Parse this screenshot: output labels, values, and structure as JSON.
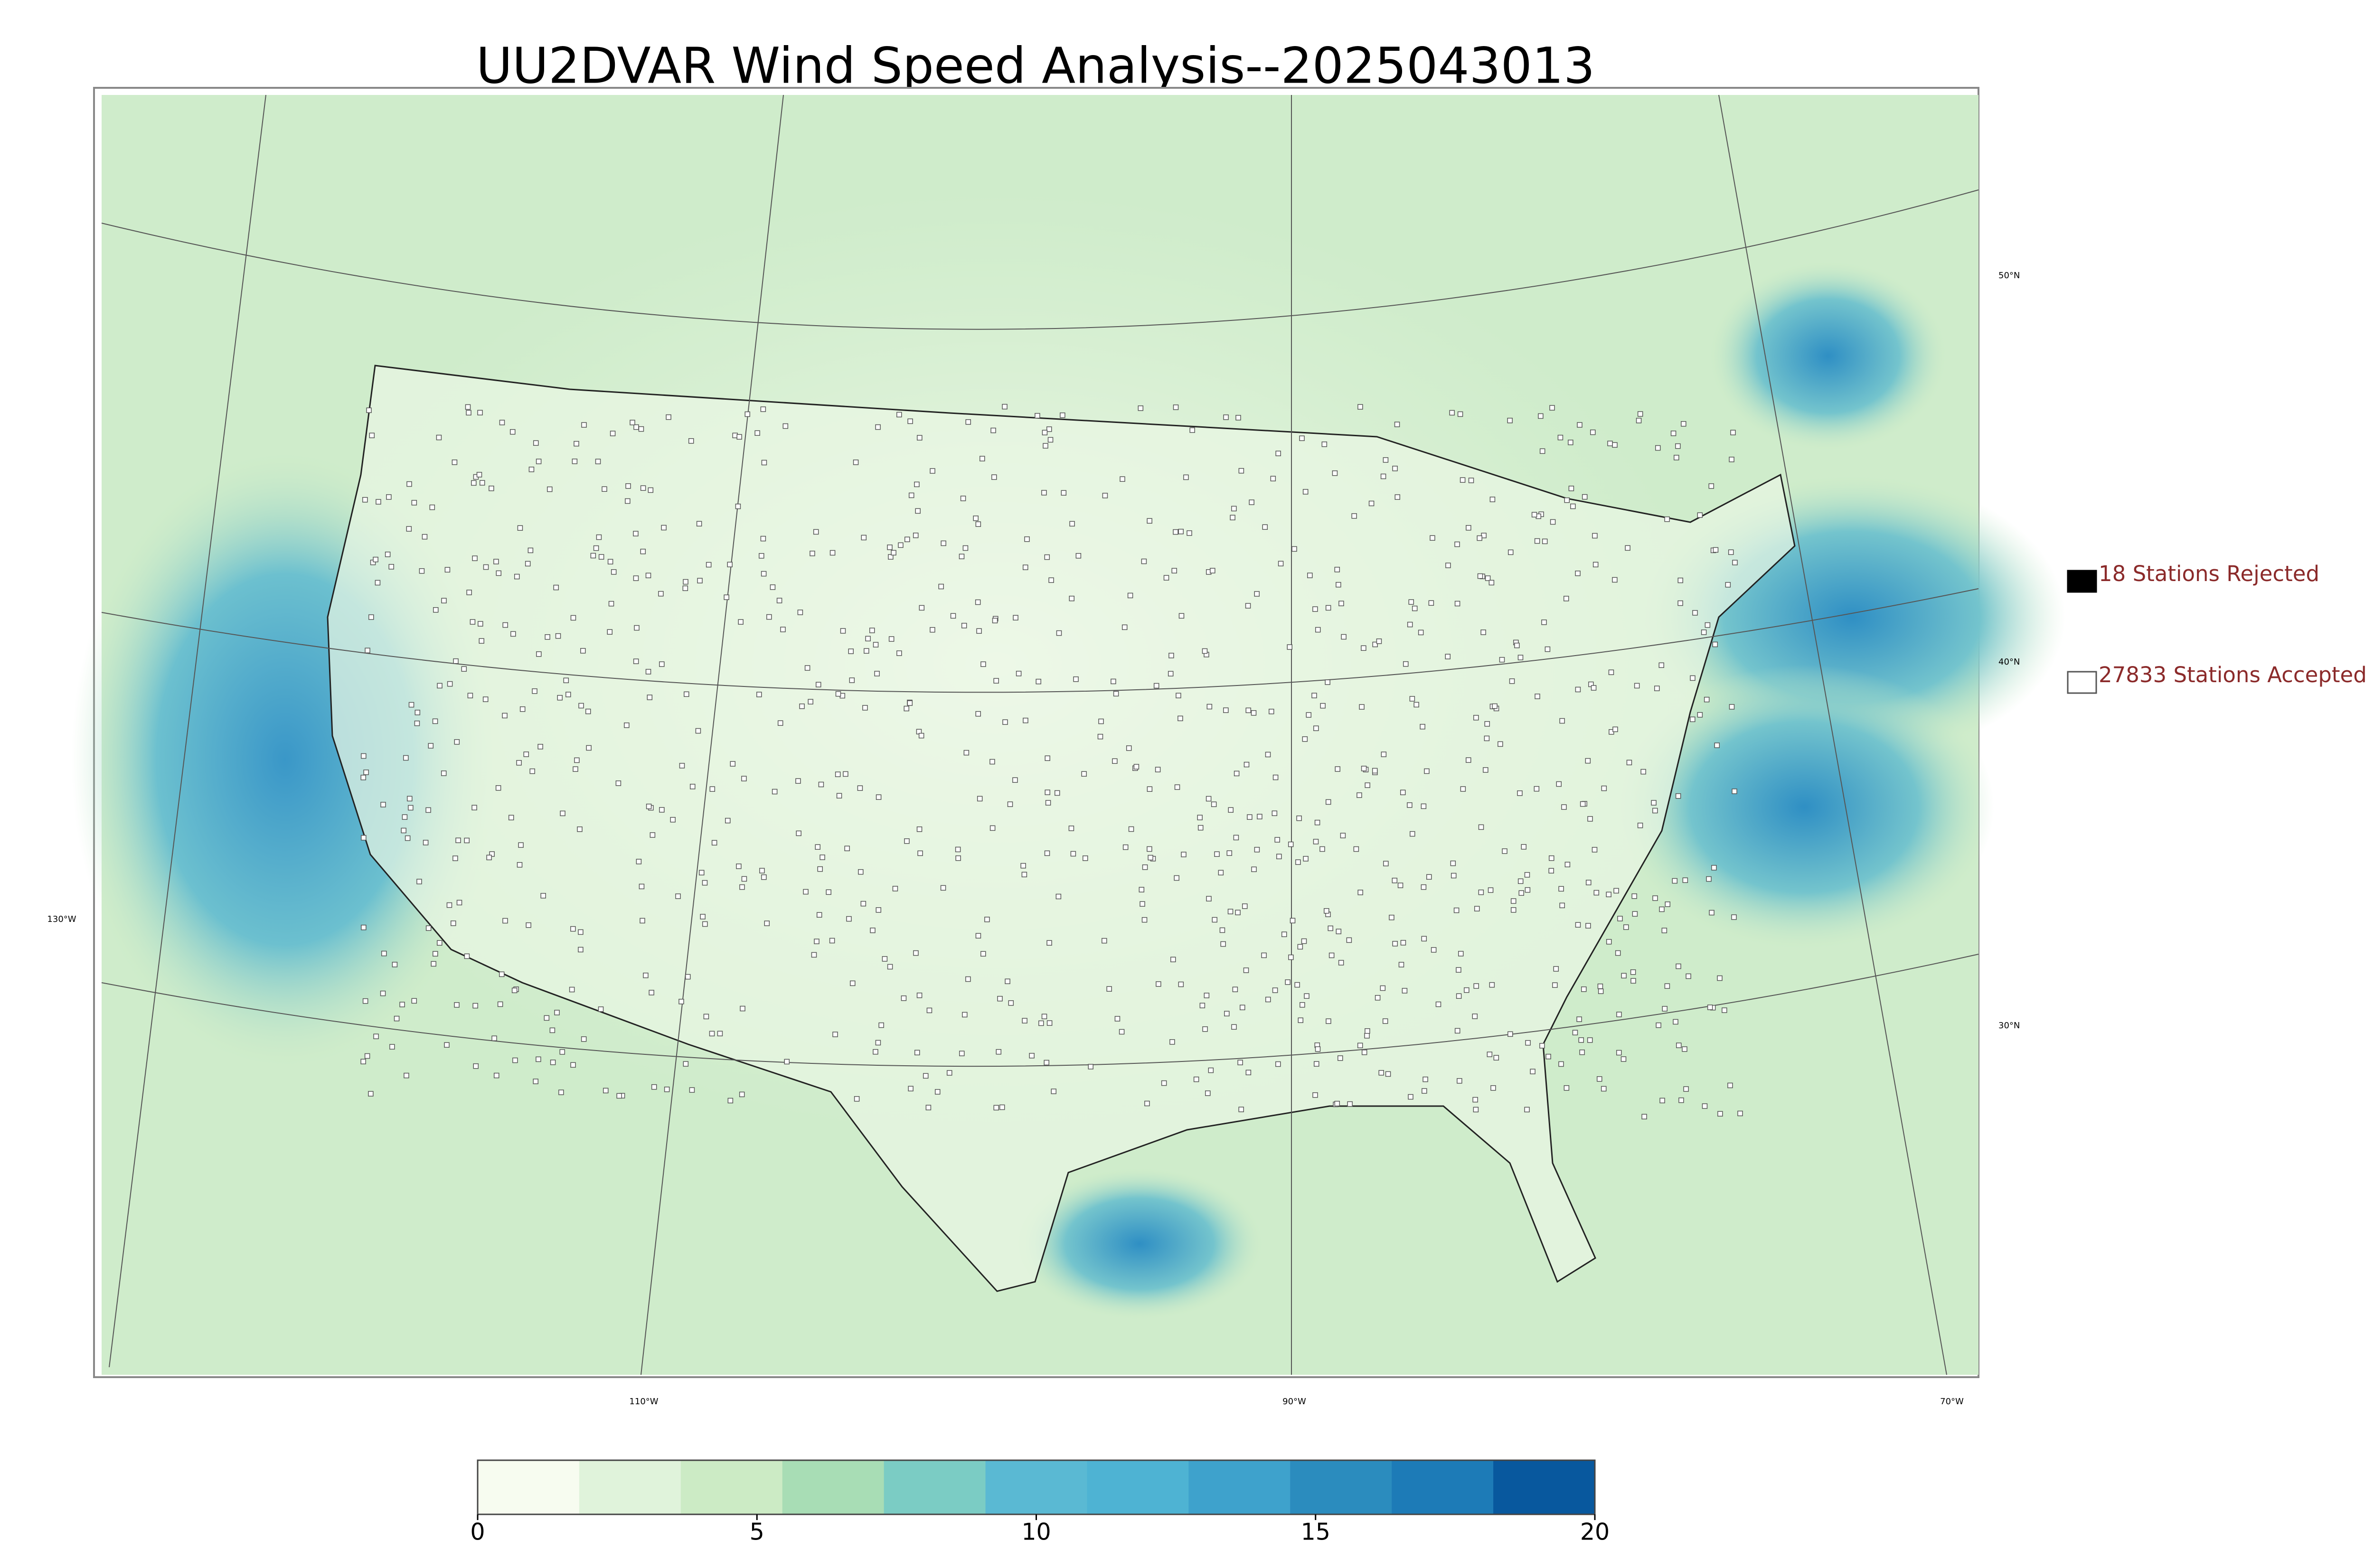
{
  "title": "UU2DVAR Wind Speed Analysis--2025043013",
  "legend": {
    "rejected": {
      "label": "18 Stations Rejected",
      "color": "#000000"
    },
    "accepted": {
      "label": "27833 Stations Accepted",
      "color": "#ffffff"
    }
  },
  "map": {
    "lat_labels": [
      "50°N",
      "40°N",
      "30°N"
    ],
    "lon_labels": [
      "130°W",
      "110°W",
      "90°W",
      "70°W"
    ]
  },
  "colorbar": {
    "lim": [
      0,
      20
    ],
    "ticks": [
      0,
      5,
      10,
      15,
      20
    ],
    "colors": [
      "#f7fcf0",
      "#e0f3db",
      "#ccebc5",
      "#a8ddb5",
      "#7bccc4",
      "#5ab9d3",
      "#4eb3d3",
      "#3ea2cc",
      "#2b8cbe",
      "#1d7bb7",
      "#08589e"
    ]
  }
}
